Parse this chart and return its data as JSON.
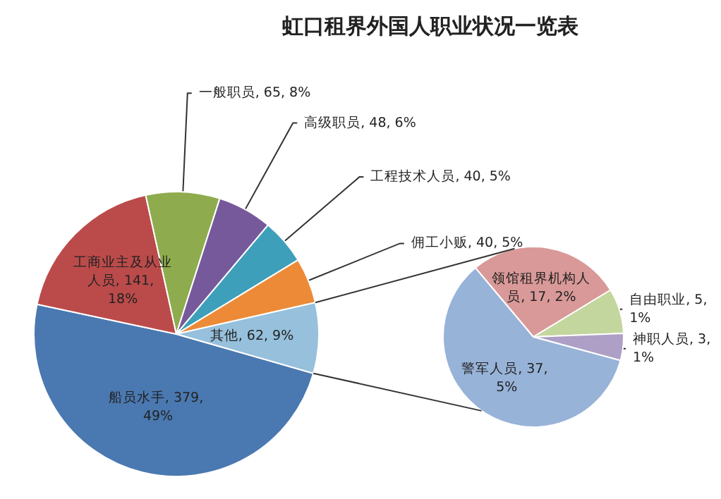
{
  "chart_data": [
    {
      "type": "pie",
      "title": "虹口租界外国人职业状况一览表",
      "categories": [
        "船员水手",
        "工商业主及从业人员",
        "一般职员",
        "高级职员",
        "工程技术人员",
        "佣工小贩",
        "其他"
      ],
      "values": [
        379,
        141,
        65,
        48,
        40,
        40,
        62
      ],
      "value_labels": [
        "379, 49%",
        "141, 18%",
        "65, 8%",
        "48, 6%",
        "40, 5%",
        "40, 5%",
        "62, 9%"
      ],
      "colors": [
        "#4a78b0",
        "#bb4b4a",
        "#8eac4e",
        "#76599a",
        "#3e9fba",
        "#ed8a37",
        "#96c0dc"
      ]
    },
    {
      "type": "pie",
      "categories": [
        "领馆租界机构人员",
        "自由职业",
        "神职人员",
        "警军人员"
      ],
      "values": [
        17,
        5,
        3,
        37
      ],
      "value_labels": [
        "17, 2%",
        "5, 1%",
        "3, 1%",
        "37, 5%"
      ],
      "colors": [
        "#d99998",
        "#c3d69e",
        "#ae9fc6",
        "#98b3d8"
      ]
    }
  ]
}
